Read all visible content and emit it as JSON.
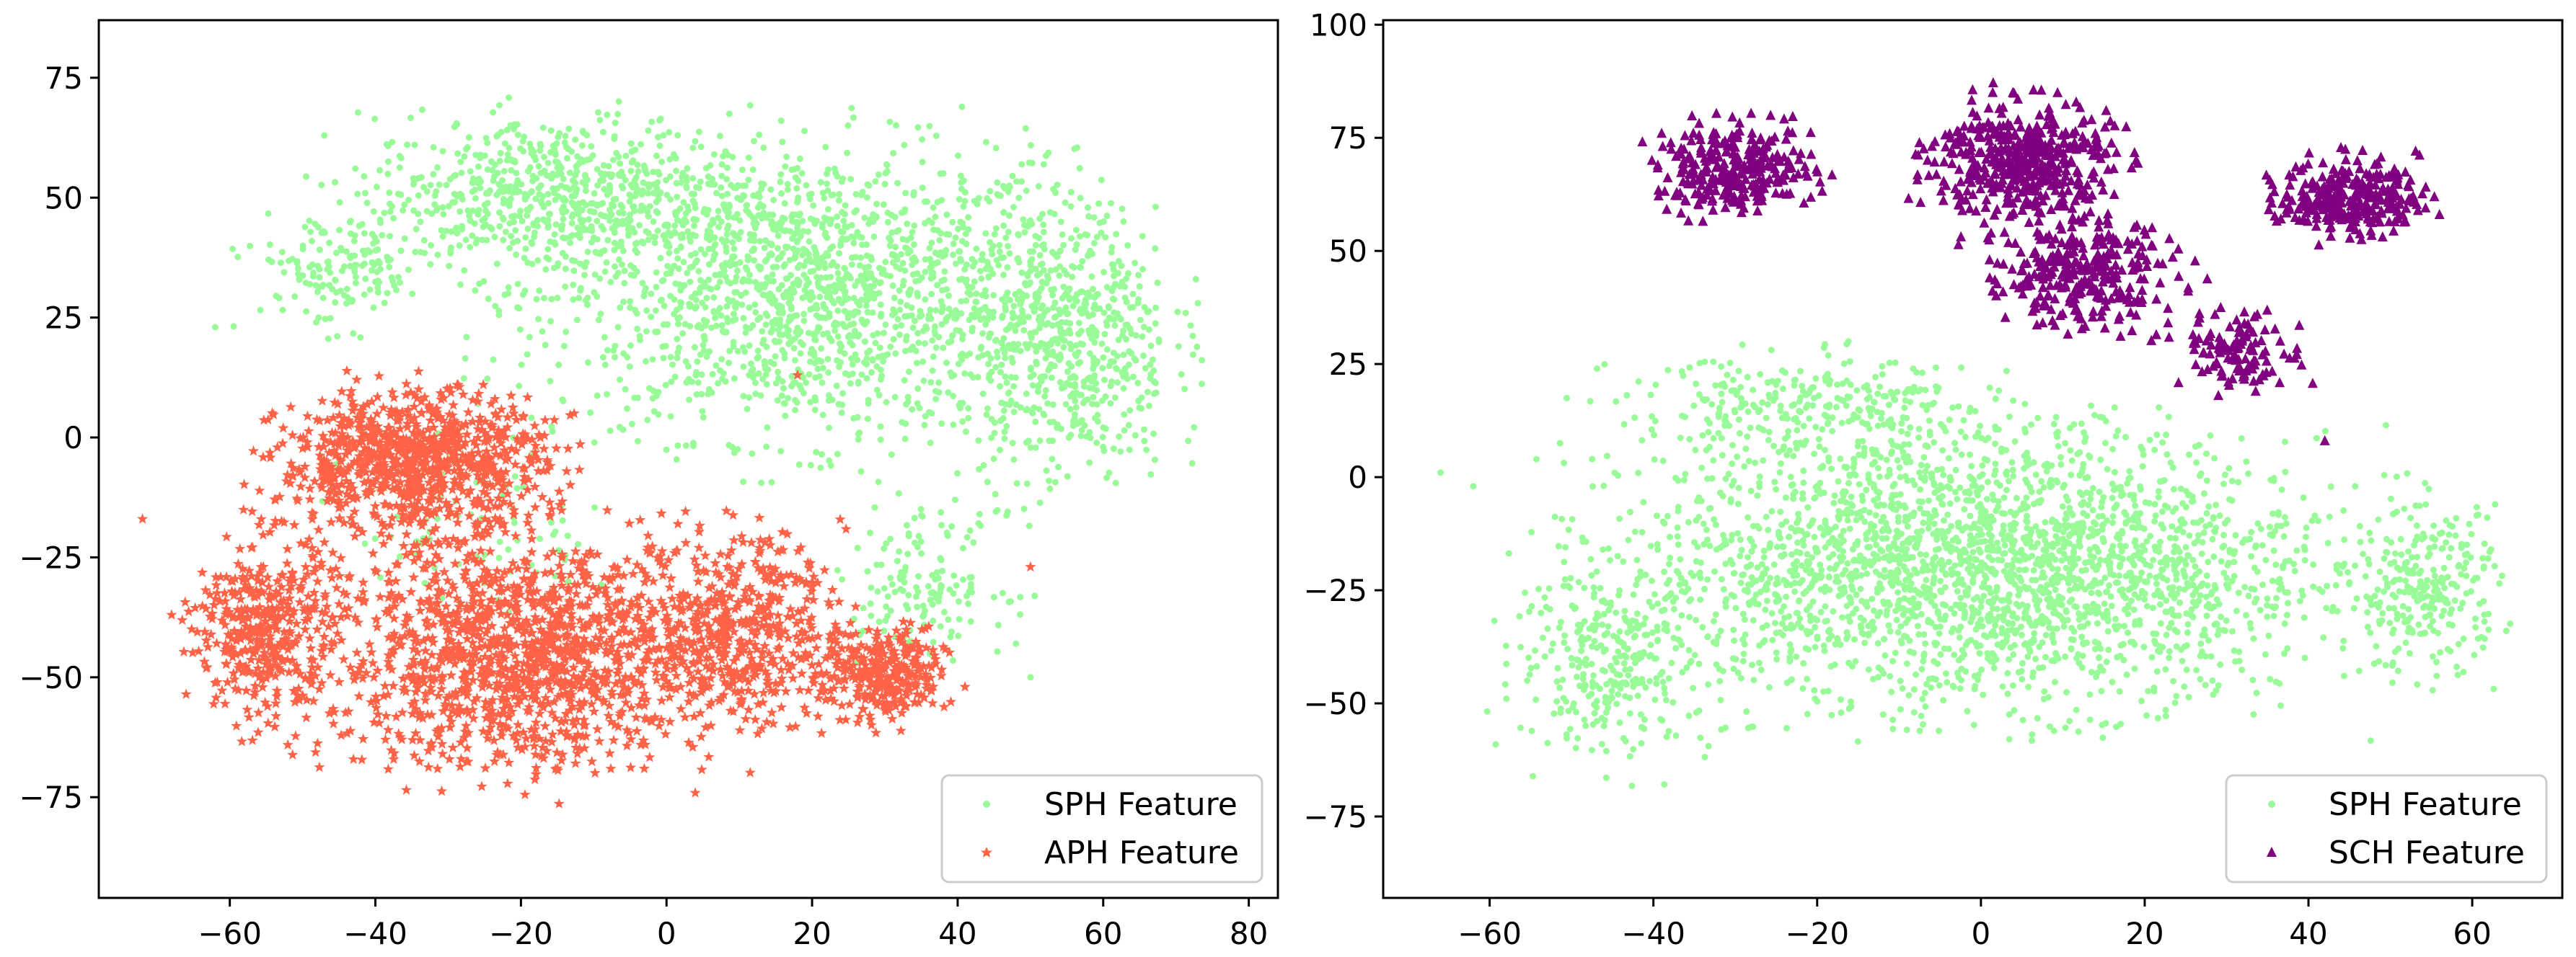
{
  "chart_data": [
    {
      "type": "scatter",
      "title": "",
      "xlabel": "",
      "ylabel": "",
      "xlim": [
        -78,
        84
      ],
      "ylim": [
        -96,
        87
      ],
      "xticks": [
        -60,
        -40,
        -20,
        0,
        20,
        40,
        60,
        80
      ],
      "yticks": [
        75,
        50,
        25,
        0,
        -25,
        -50,
        -75
      ],
      "xtick_labels": [
        "−60",
        "−40",
        "−20",
        "0",
        "20",
        "40",
        "60",
        "80"
      ],
      "ytick_labels": [
        "75",
        "50",
        "25",
        "0",
        "−25",
        "−50",
        "−75"
      ],
      "grid": false,
      "legend_position": "bottom-right",
      "series": [
        {
          "name": "SPH Feature",
          "marker": "circle",
          "color": "#98fb98",
          "description_clusters": [
            {
              "cx": 20,
              "cy": 30,
              "sx": 30,
              "sy": 25,
              "n": 1600
            },
            {
              "cx": -15,
              "cy": 50,
              "sx": 22,
              "sy": 14,
              "n": 700
            },
            {
              "cx": 55,
              "cy": 20,
              "sx": 12,
              "sy": 25,
              "n": 600
            },
            {
              "cx": 35,
              "cy": -30,
              "sx": 10,
              "sy": 12,
              "n": 150
            },
            {
              "cx": -45,
              "cy": 35,
              "sx": 10,
              "sy": 10,
              "n": 150
            },
            {
              "cx": -25,
              "cy": -20,
              "sx": 15,
              "sy": 15,
              "n": 80
            }
          ],
          "outliers": [
            [
              -62,
              23
            ],
            [
              50,
              -50
            ],
            [
              48,
              -43
            ],
            [
              73,
              28
            ]
          ]
        },
        {
          "name": "APH Feature",
          "marker": "star",
          "color": "#ff6347",
          "description_clusters": [
            {
              "cx": -35,
              "cy": -5,
              "sx": 15,
              "sy": 12,
              "n": 900
            },
            {
              "cx": -20,
              "cy": -45,
              "sx": 22,
              "sy": 20,
              "n": 1300
            },
            {
              "cx": -55,
              "cy": -40,
              "sx": 8,
              "sy": 16,
              "n": 400
            },
            {
              "cx": 10,
              "cy": -40,
              "sx": 12,
              "sy": 16,
              "n": 500
            },
            {
              "cx": 30,
              "cy": -50,
              "sx": 7,
              "sy": 8,
              "n": 300
            }
          ],
          "outliers": [
            [
              18,
              13
            ],
            [
              50,
              -27
            ],
            [
              -72,
              -17
            ],
            [
              -68,
              -37
            ]
          ]
        }
      ]
    },
    {
      "type": "scatter",
      "title": "",
      "xlabel": "",
      "ylabel": "",
      "xlim": [
        -73,
        71
      ],
      "ylim": [
        -93,
        101
      ],
      "xticks": [
        -60,
        -40,
        -20,
        0,
        20,
        40,
        60
      ],
      "yticks": [
        100,
        75,
        50,
        25,
        0,
        -25,
        -50,
        -75
      ],
      "xtick_labels": [
        "−60",
        "−40",
        "−20",
        "0",
        "20",
        "40",
        "60"
      ],
      "ytick_labels": [
        "100",
        "75",
        "50",
        "25",
        "0",
        "−25",
        "−50",
        "−75"
      ],
      "grid": false,
      "legend_position": "bottom-right",
      "series": [
        {
          "name": "SPH Feature",
          "marker": "circle",
          "color": "#98fb98",
          "description_clusters": [
            {
              "cx": 0,
              "cy": -20,
              "sx": 35,
              "sy": 25,
              "n": 2600
            },
            {
              "cx": -45,
              "cy": -40,
              "sx": 10,
              "sy": 18,
              "n": 300
            },
            {
              "cx": 55,
              "cy": -25,
              "sx": 7,
              "sy": 15,
              "n": 250
            },
            {
              "cx": -20,
              "cy": 15,
              "sx": 20,
              "sy": 10,
              "n": 300
            }
          ],
          "outliers": [
            [
              -66,
              1
            ],
            [
              -62,
              -2
            ],
            [
              12,
              -15
            ]
          ]
        },
        {
          "name": "SCH Feature",
          "marker": "triangle",
          "color": "#800080",
          "description_clusters": [
            {
              "cx": -30,
              "cy": 68,
              "sx": 8,
              "sy": 8,
              "n": 300
            },
            {
              "cx": 5,
              "cy": 70,
              "sx": 9,
              "sy": 11,
              "n": 450
            },
            {
              "cx": 12,
              "cy": 45,
              "sx": 10,
              "sy": 10,
              "n": 300
            },
            {
              "cx": 45,
              "cy": 62,
              "sx": 7,
              "sy": 7,
              "n": 280
            },
            {
              "cx": 32,
              "cy": 28,
              "sx": 6,
              "sy": 7,
              "n": 120
            }
          ],
          "outliers": [
            [
              42,
              8
            ],
            [
              29,
              18
            ],
            [
              56,
              58
            ],
            [
              -35,
              67
            ]
          ]
        }
      ]
    }
  ]
}
